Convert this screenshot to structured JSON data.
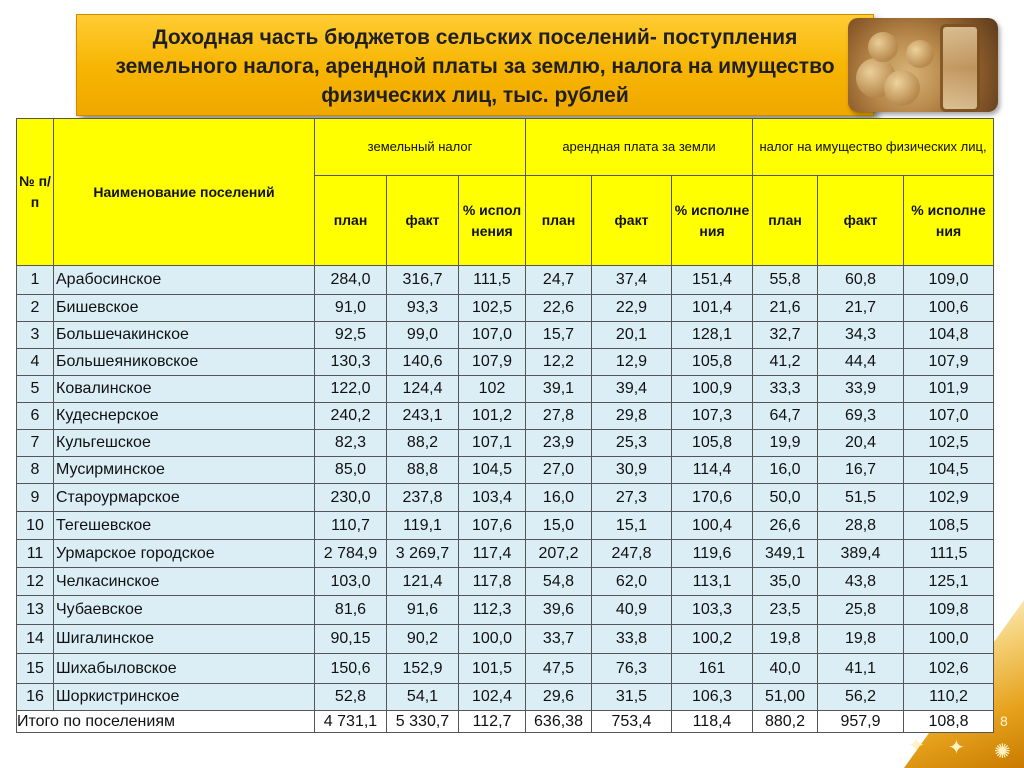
{
  "title": "Доходная часть бюджетов сельских поселений- поступления\nземельного налога, арендной платы за землю, налога на имущество\nфизических лиц, тыс. рублей",
  "page_number": "8",
  "headers": {
    "num": "№ п/п",
    "name": "Наименование поселений",
    "groups": [
      "земельный налог",
      "арендная плата за земли",
      "налог на имущество физических лиц,"
    ],
    "sub": {
      "plan": "план",
      "fact": "факт",
      "pct_a": "% испол нения",
      "pct_b": "% исполне ния"
    }
  },
  "rows": [
    {
      "n": "1",
      "name": "Арабосинское",
      "v": [
        "284,0",
        "316,7",
        "111,5",
        "24,7",
        "37,4",
        "151,4",
        "55,8",
        "60,8",
        "109,0"
      ]
    },
    {
      "n": "2",
      "name": "Бишевское",
      "v": [
        "91,0",
        "93,3",
        "102,5",
        "22,6",
        "22,9",
        "101,4",
        "21,6",
        "21,7",
        "100,6"
      ]
    },
    {
      "n": "3",
      "name": "Большечакинское",
      "v": [
        "92,5",
        "99,0",
        "107,0",
        "15,7",
        "20,1",
        "128,1",
        "32,7",
        "34,3",
        "104,8"
      ]
    },
    {
      "n": "4",
      "name": "Большеяниковское",
      "v": [
        "130,3",
        "140,6",
        "107,9",
        "12,2",
        "12,9",
        "105,8",
        "41,2",
        "44,4",
        "107,9"
      ]
    },
    {
      "n": "5",
      "name": "Ковалинское",
      "v": [
        "122,0",
        "124,4",
        "102",
        "39,1",
        "39,4",
        "100,9",
        "33,3",
        "33,9",
        "101,9"
      ]
    },
    {
      "n": "6",
      "name": "Кудеснерское",
      "v": [
        "240,2",
        "243,1",
        "101,2",
        "27,8",
        "29,8",
        "107,3",
        "64,7",
        "69,3",
        "107,0"
      ]
    },
    {
      "n": "7",
      "name": "Кульгешское",
      "v": [
        "82,3",
        "88,2",
        "107,1",
        "23,9",
        "25,3",
        "105,8",
        "19,9",
        "20,4",
        "102,5"
      ]
    },
    {
      "n": "8",
      "name": "Мусирминское",
      "v": [
        "85,0",
        "88,8",
        "104,5",
        "27,0",
        "30,9",
        "114,4",
        "16,0",
        "16,7",
        "104,5"
      ]
    },
    {
      "n": "9",
      "name": "Староурмарское",
      "v": [
        "230,0",
        "237,8",
        "103,4",
        "16,0",
        "27,3",
        "170,6",
        "50,0",
        "51,5",
        "102,9"
      ]
    },
    {
      "n": "10",
      "name": "Тегешевское",
      "v": [
        "110,7",
        "119,1",
        "107,6",
        "15,0",
        "15,1",
        "100,4",
        "26,6",
        "28,8",
        "108,5"
      ]
    },
    {
      "n": "11",
      "name": "Урмарское городское",
      "v": [
        "2 784,9",
        "3 269,7",
        "117,4",
        "207,2",
        "247,8",
        "119,6",
        "349,1",
        "389,4",
        "111,5"
      ]
    },
    {
      "n": "12",
      "name": "Челкасинское",
      "v": [
        "103,0",
        "121,4",
        "117,8",
        "54,8",
        "62,0",
        "113,1",
        "35,0",
        "43,8",
        "125,1"
      ]
    },
    {
      "n": "13",
      "name": "Чубаевское",
      "v": [
        "81,6",
        "91,6",
        "112,3",
        "39,6",
        "40,9",
        "103,3",
        "23,5",
        "25,8",
        "109,8"
      ]
    },
    {
      "n": "14",
      "name": "Шигалинское",
      "v": [
        "90,15",
        "90,2",
        "100,0",
        "33,7",
        "33,8",
        "100,2",
        "19,8",
        "19,8",
        "100,0"
      ]
    },
    {
      "n": "15",
      "name": "Шихабыловское",
      "v": [
        "150,6",
        "152,9",
        "101,5",
        "47,5",
        "76,3",
        "161",
        "40,0",
        "41,1",
        "102,6"
      ]
    },
    {
      "n": "16",
      "name": "Шоркистринское",
      "v": [
        "52,8",
        "54,1",
        "102,4",
        "29,6",
        "31,5",
        "106,3",
        "51,00",
        "56,2",
        "110,2"
      ]
    }
  ],
  "total": {
    "label": "Итого по поселениям",
    "v": [
      "4 731,1",
      "5 330,7",
      "112,7",
      "636,38",
      "753,4",
      "118,4",
      "880,2",
      "957,9",
      "108,8"
    ]
  }
}
